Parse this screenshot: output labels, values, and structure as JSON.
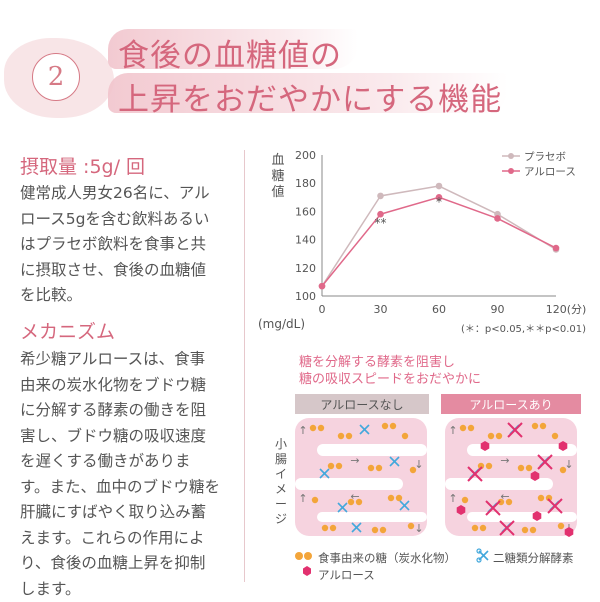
{
  "badge_number": "2",
  "title_lines": [
    "食後の血糖値の",
    "上昇をおだやかにする機能"
  ],
  "intake": {
    "heading": "摂取量 :5g/ 回",
    "lines": [
      "健常成人男女26名に、アル",
      "ロース5gを含む飲料あるい",
      "はプラセボ飲料を食事と共",
      "に摂取させ、食後の血糖値",
      "を比較。"
    ]
  },
  "mechanism": {
    "heading": "メカニズム",
    "lines": [
      "希少糖アルロースは、食事",
      "由来の炭水化物をブドウ糖",
      "に分解する酵素の働きを阻",
      "害し、ブドウ糖の吸収速度",
      "を遅くする働きがありま",
      "す。また、血中のブドウ糖を",
      "肝臓にすばやく取り込み蓄",
      "えます。これらの作用によ",
      "り、食後の血糖上昇を抑制",
      "します。"
    ]
  },
  "chart_data": {
    "type": "line",
    "ylabel": "血糖値",
    "yunit": "(mg/dL)",
    "xunit": "(分)",
    "x": [
      0,
      30,
      60,
      90,
      120
    ],
    "xtick_labels": [
      "0",
      "30",
      "60",
      "90",
      "120(分)"
    ],
    "yticks": [
      100,
      120,
      140,
      160,
      180,
      200
    ],
    "ylim": [
      100,
      200
    ],
    "xlim": [
      0,
      120
    ],
    "grid": false,
    "legend_position": "top-right",
    "series": [
      {
        "name": "プラセボ",
        "color": "#cfb9bc",
        "values": [
          107,
          171,
          178,
          158,
          133
        ]
      },
      {
        "name": "アルロース",
        "color": "#e0698a",
        "values": [
          107,
          158,
          170,
          155,
          134
        ]
      }
    ],
    "annotations": [
      {
        "x": 30,
        "text": "**"
      },
      {
        "x": 60,
        "text": "*"
      }
    ],
    "footnote": "(＊：p<0.05,＊＊p<0.01)"
  },
  "illustration": {
    "caption_lines": [
      "糖を分解する酵素を阻害し",
      "糖の吸収スピードをおだやかに"
    ],
    "panel_left_label": "アルロースなし",
    "panel_right_label": "アルロースあり",
    "side_label": "小腸イメージ",
    "legend": [
      {
        "icon": "dots",
        "text": "食事由来の糖（炭水化物）"
      },
      {
        "icon": "scissors",
        "text": "二糖類分解酵素"
      },
      {
        "icon": "hexagon",
        "text": "アルロース"
      }
    ],
    "colors": {
      "sugar": "#f3a53a",
      "enzyme": "#43a8dc",
      "allulose": "#e2316f",
      "intestine": "#f6d3df",
      "left_tab": "#d6c7c9",
      "right_tab": "#e48ba1"
    }
  }
}
